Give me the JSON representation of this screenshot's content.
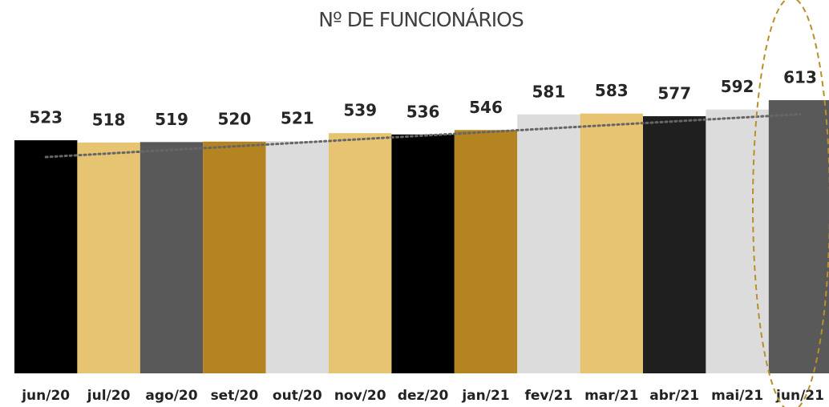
{
  "chart_data": {
    "type": "bar",
    "title": "Nº DE FUNCIONÁRIOS",
    "categories": [
      "jun/20",
      "jul/20",
      "ago/20",
      "set/20",
      "out/20",
      "nov/20",
      "dez/20",
      "jan/21",
      "fev/21",
      "mar/21",
      "abr/21",
      "mai/21",
      "jun/21"
    ],
    "values": [
      523,
      518,
      519,
      520,
      521,
      539,
      536,
      546,
      581,
      583,
      577,
      592,
      613
    ],
    "colors": [
      "#000000",
      "#e6c472",
      "#595959",
      "#b38420",
      "#dcdcdc",
      "#e6c472",
      "#000000",
      "#b38420",
      "#dcdcdc",
      "#e6c472",
      "#1f1f1f",
      "#dcdcdc",
      "#595959"
    ],
    "ylim": [
      0,
      800
    ]
  }
}
